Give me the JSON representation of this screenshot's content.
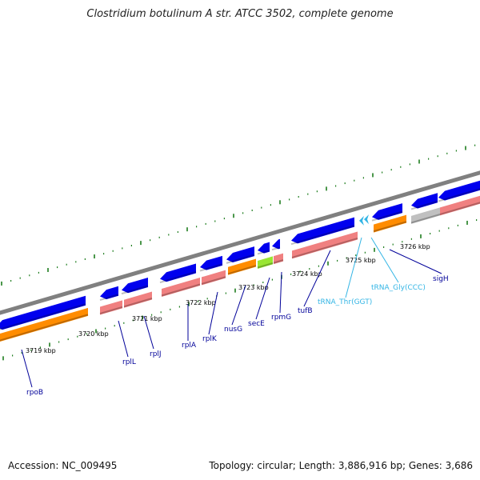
{
  "title": "Clostridium botulinum A str. ATCC 3502, complete genome",
  "accession": "Accession: NC_009495",
  "summary": "Topology: circular; Length: 3,886,916 bp; Genes: 3,686",
  "colors": {
    "backbone": "#808080",
    "cds": "#0000ee",
    "gene_track": "#f08080",
    "orange_track": "#ff8c00",
    "secE": "#99e632",
    "pseudo": "#c0c0c0",
    "trna": "#33b5e5",
    "label_dark": "#000099",
    "label_trna": "#33b5e5",
    "tick": "#1e7d1e"
  },
  "tick_labels": [
    "3719 kbp",
    "3720 kbp",
    "3721 kbp",
    "3722 kbp",
    "3723 kbp",
    "3724 kbp",
    "3725 kbp",
    "3726 kbp"
  ],
  "genes": [
    {
      "name": "rpoB",
      "type": "cds"
    },
    {
      "name": "rplL",
      "type": "cds"
    },
    {
      "name": "rplJ",
      "type": "cds"
    },
    {
      "name": "rplA",
      "type": "cds"
    },
    {
      "name": "rplK",
      "type": "cds"
    },
    {
      "name": "nusG",
      "type": "cds"
    },
    {
      "name": "secE",
      "type": "cds"
    },
    {
      "name": "rpmG",
      "type": "cds"
    },
    {
      "name": "tufB",
      "type": "cds"
    },
    {
      "name": "tRNA_Thr(GGT)",
      "type": "trna"
    },
    {
      "name": "tRNA_Gly(CCC)",
      "type": "trna"
    },
    {
      "name": "sigH",
      "type": "cds"
    }
  ]
}
